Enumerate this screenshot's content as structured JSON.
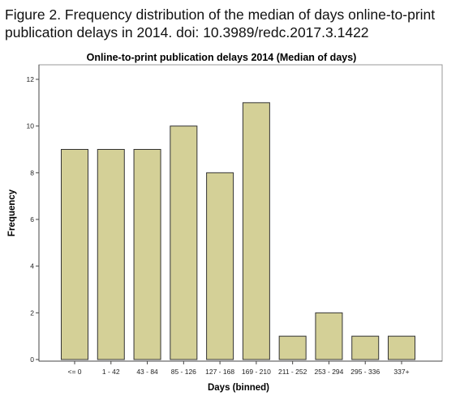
{
  "figure_caption": {
    "line1": "Figure 2. Frequency distribution of the median of days  online-to-print",
    "line2": "publication delays in 2014. doi: 10.3989/redc.2017.3.1422"
  },
  "chart_data": {
    "type": "bar",
    "title": "Online-to-print publication delays 2014 (Median of days)",
    "xlabel": "Days (binned)",
    "ylabel": "Frequency",
    "categories": [
      "<= 0",
      "1 - 42",
      "43 - 84",
      "85 - 126",
      "127 - 168",
      "169 - 210",
      "211 - 252",
      "253 - 294",
      "295 - 336",
      "337+"
    ],
    "values": [
      9,
      9,
      9,
      10,
      8,
      11,
      1,
      2,
      1,
      1
    ],
    "ylim": [
      0,
      12
    ],
    "yticks": [
      0,
      2,
      4,
      6,
      8,
      10,
      12
    ],
    "grid": false,
    "colors": {
      "bar_fill": "#d4d097",
      "bar_stroke": "#333333",
      "plot_background": "#ffffff",
      "frame": "#999999"
    }
  }
}
